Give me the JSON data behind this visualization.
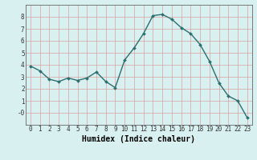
{
  "xlabel": "Humidex (Indice chaleur)",
  "ylabel": "",
  "x": [
    0,
    1,
    2,
    3,
    4,
    5,
    6,
    7,
    8,
    9,
    10,
    11,
    12,
    13,
    14,
    15,
    16,
    17,
    18,
    19,
    20,
    21,
    22,
    23
  ],
  "y": [
    3.9,
    3.5,
    2.8,
    2.6,
    2.9,
    2.7,
    2.9,
    3.4,
    2.6,
    2.1,
    4.4,
    5.4,
    6.6,
    8.1,
    8.2,
    7.8,
    7.1,
    6.6,
    5.7,
    4.3,
    2.5,
    1.4,
    1.0,
    -0.4
  ],
  "line_color": "#2d6e6e",
  "marker": "D",
  "marker_size": 2,
  "line_width": 1.0,
  "bg_color": "#d8f0f0",
  "grid_color": "#c0d0d0",
  "grid_major_color": "#e8c8c8",
  "ylim": [
    -1.0,
    9.0
  ],
  "xlim": [
    -0.5,
    23.5
  ],
  "yticks": [
    0,
    1,
    2,
    3,
    4,
    5,
    6,
    7,
    8
  ],
  "ytick_labels": [
    "-0",
    "1",
    "2",
    "3",
    "4",
    "5",
    "6",
    "7",
    "8"
  ],
  "xticks": [
    0,
    1,
    2,
    3,
    4,
    5,
    6,
    7,
    8,
    9,
    10,
    11,
    12,
    13,
    14,
    15,
    16,
    17,
    18,
    19,
    20,
    21,
    22,
    23
  ],
  "tick_fontsize": 5.5,
  "label_fontsize": 7,
  "axis_color": "#333333",
  "spine_color": "#666666"
}
